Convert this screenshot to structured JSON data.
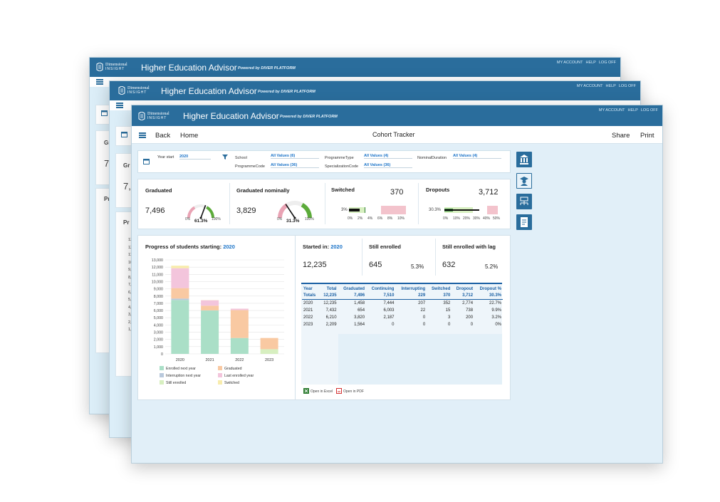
{
  "app": {
    "logo_line1": "Dimensional",
    "logo_line2": "INSIGHT",
    "title": "Higher Education Advisor",
    "powered": "Powered by DIVER PLATFORM",
    "account": [
      "MY ACCOUNT",
      "HELP",
      "LOG OFF"
    ]
  },
  "ghost": {
    "w1_texts": [
      "Gr",
      "7,",
      "Pr"
    ],
    "w2_texts": [
      "Gr",
      "7,4",
      "Pr"
    ],
    "w2_axis": [
      "13,",
      "12,",
      "11,",
      "10,",
      "9,",
      "8,",
      "7,",
      "6,",
      "5,",
      "4,",
      "3,",
      "2,",
      "1,"
    ]
  },
  "toolbar": {
    "back": "Back",
    "home": "Home",
    "page_title": "Cohort Tracker",
    "share": "Share",
    "print": "Print"
  },
  "filters": {
    "year_start_label": "Year start",
    "year_start_value": "2020",
    "school_label": "School",
    "school_value": "All Values (6)",
    "programme_code_label": "ProgrammeCode",
    "programme_code_value": "All Values (36)",
    "programme_type_label": "ProgrammeType",
    "programme_type_value": "All Values (4)",
    "specialization_label": "SpecializationCode",
    "specialization_value": "All Values (36)",
    "nominal_label": "NominalDuration",
    "nominal_value": "All Values (4)"
  },
  "kpis": {
    "graduated": {
      "title": "Graduated",
      "value": "7,496",
      "pct": "61.3%",
      "min": "0%",
      "max": "100%",
      "fraction": 0.613
    },
    "nominal": {
      "title": "Graduated nominally",
      "value": "3,829",
      "pct": "31.3%",
      "min": "0%",
      "max": "100%",
      "fraction": 0.313
    },
    "switched": {
      "title": "Switched",
      "value": "370",
      "pct": "3%",
      "ticks": [
        "0%",
        "2%",
        "4%",
        "6%",
        "8%",
        "10%"
      ]
    },
    "dropouts": {
      "title": "Dropouts",
      "value": "3,712",
      "pct": "30.3%",
      "ticks": [
        "0%",
        "10%",
        "20%",
        "30%",
        "40%",
        "50%"
      ]
    }
  },
  "progress": {
    "title": "Progress of students starting:",
    "year": "2020"
  },
  "summary": {
    "started_label": "Started in:",
    "started_year": "2020",
    "started_value": "12,235",
    "still_label": "Still enrolled",
    "still_value": "645",
    "still_pct": "5.3%",
    "lag_label": "Still enrolled with lag",
    "lag_value": "632",
    "lag_pct": "5.2%"
  },
  "table": {
    "headers": [
      "Year",
      "Total",
      "Graduated",
      "Continuing",
      "Interrupting",
      "Switched",
      "Dropout",
      "Dropout %"
    ],
    "totals": [
      "Totals",
      "12,235",
      "7,496",
      "7,510",
      "229",
      "370",
      "3,712",
      "30.3%"
    ],
    "rows": [
      [
        "2020",
        "12,235",
        "1,458",
        "7,444",
        "207",
        "352",
        "2,774",
        "22.7%"
      ],
      [
        "2021",
        "7,432",
        "654",
        "6,003",
        "22",
        "15",
        "738",
        "9.9%"
      ],
      [
        "2022",
        "6,210",
        "3,820",
        "2,187",
        "0",
        "3",
        "200",
        "3.2%"
      ],
      [
        "2023",
        "2,209",
        "1,564",
        "0",
        "0",
        "0",
        "0",
        "0%"
      ]
    ],
    "excel": "Open in Excel",
    "pdf": "Open in PDF"
  },
  "colors": {
    "header": "#2a6d9c",
    "enrolled": "#aadfc7",
    "graduated": "#f9c9a2",
    "interruption": "#b9c9dc",
    "last_enrolled": "#f3c5dc",
    "still_enrolled": "#d7efc0",
    "switched": "#f8ecad"
  },
  "chart_data": {
    "type": "bar",
    "stacked": true,
    "categories": [
      "2020",
      "2021",
      "2022",
      "2023"
    ],
    "ylim": [
      0,
      13000
    ],
    "yticks": [
      "0",
      "1,000",
      "2,000",
      "3,000",
      "4,000",
      "5,000",
      "6,000",
      "7,000",
      "8,000",
      "9,000",
      "10,000",
      "11,000",
      "12,000",
      "13,000"
    ],
    "series": [
      {
        "name": "Enrolled next year",
        "color": "#aadfc7",
        "values": [
          7450,
          6000,
          2200,
          0
        ]
      },
      {
        "name": "Interruption next year",
        "color": "#b9c9dc",
        "values": [
          200,
          20,
          0,
          0
        ]
      },
      {
        "name": "Still enrolled",
        "color": "#d7efc0",
        "values": [
          0,
          0,
          0,
          650
        ]
      },
      {
        "name": "Graduated",
        "color": "#f9c9a2",
        "values": [
          1450,
          650,
          3850,
          1550
        ]
      },
      {
        "name": "Last enrolled year",
        "color": "#f3c5dc",
        "values": [
          2750,
          750,
          200,
          0
        ]
      },
      {
        "name": "Switched",
        "color": "#f8ecad",
        "values": [
          350,
          20,
          0,
          0
        ]
      }
    ]
  }
}
